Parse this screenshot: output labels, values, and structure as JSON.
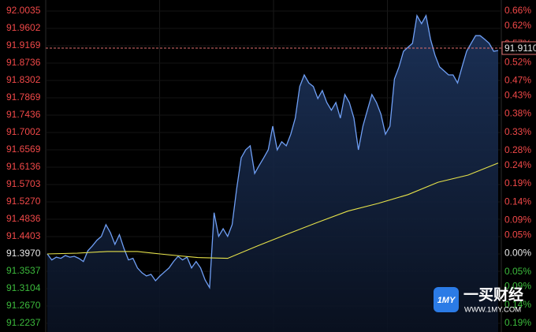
{
  "chart_data": {
    "type": "line",
    "series": [
      {
        "name": "price",
        "color": "#6f9ff5",
        "values": [
          91.397,
          91.382,
          91.389,
          91.386,
          91.393,
          91.389,
          91.391,
          91.386,
          91.378,
          91.405,
          91.417,
          91.431,
          91.441,
          91.47,
          91.45,
          91.421,
          91.445,
          91.411,
          91.382,
          91.386,
          91.362,
          91.35,
          91.342,
          91.346,
          91.33,
          91.342,
          91.352,
          91.362,
          91.378,
          91.391,
          91.382,
          91.389,
          91.362,
          91.378,
          91.362,
          91.332,
          91.313,
          91.5,
          91.441,
          91.46,
          91.441,
          91.47,
          91.559,
          91.637,
          91.657,
          91.667,
          91.598,
          91.618,
          91.637,
          91.657,
          91.716,
          91.657,
          91.677,
          91.667,
          91.696,
          91.736,
          91.815,
          91.844,
          91.824,
          91.815,
          91.785,
          91.805,
          91.775,
          91.756,
          91.775,
          91.736,
          91.795,
          91.775,
          91.736,
          91.657,
          91.716,
          91.756,
          91.795,
          91.775,
          91.746,
          91.696,
          91.716,
          91.834,
          91.864,
          91.903,
          91.913,
          91.923,
          91.992,
          91.972,
          91.992,
          91.933,
          91.893,
          91.864,
          91.854,
          91.844,
          91.844,
          91.824,
          91.864,
          91.903,
          91.923,
          91.942,
          91.942,
          91.933,
          91.923,
          91.903,
          91.905
        ]
      },
      {
        "name": "average",
        "color": "#e6e24a",
        "values": [
          91.397,
          91.399,
          91.403,
          91.403,
          91.395,
          91.388,
          91.386,
          91.417,
          91.447,
          91.476,
          91.504,
          91.523,
          91.545,
          91.576,
          91.594,
          91.624
        ]
      }
    ],
    "ylim": [
      91.2237,
      92.0035
    ],
    "yticks": [
      {
        "value": 92.0035,
        "label": "92.0035"
      },
      91.9602,
      91.9169,
      91.8736,
      91.8302,
      91.7869,
      91.7436,
      91.7002,
      91.6569,
      91.6136,
      91.5703,
      {
        "value": 91.527,
        "label": "91.5270"
      },
      91.4836,
      91.4403,
      {
        "value": 91.397,
        "label": "91.3970"
      },
      91.3537,
      91.3104,
      {
        "value": 91.267,
        "label": "91.2670"
      },
      91.2237
    ],
    "y2lim": [
      -0.19,
      0.66
    ],
    "y2ticks": [
      {
        "value": 0.66,
        "label": "0.66%"
      },
      {
        "value": 0.62,
        "label": "0.62%"
      },
      {
        "value": 0.57,
        "label": "0.57%"
      },
      {
        "value": 0.52,
        "label": "0.52%"
      },
      {
        "value": 0.47,
        "label": "0.47%"
      },
      {
        "value": 0.43,
        "label": "0.43%"
      },
      {
        "value": 0.38,
        "label": "0.38%"
      },
      {
        "value": 0.33,
        "label": "0.33%"
      },
      {
        "value": 0.28,
        "label": "0.28%"
      },
      {
        "value": 0.24,
        "label": "0.24%"
      },
      {
        "value": 0.19,
        "label": "0.19%"
      },
      {
        "value": 0.14,
        "label": "0.14%"
      },
      {
        "value": 0.09,
        "label": "0.09%"
      },
      {
        "value": 0.05,
        "label": "0.05%"
      },
      {
        "value": 0,
        "label": "0.00%"
      },
      {
        "value": -0.05,
        "label": "0.05%"
      },
      {
        "value": -0.09,
        "label": "0.09%"
      },
      {
        "value": -0.14,
        "label": "0.14%"
      },
      {
        "value": -0.19,
        "label": "0.19%"
      }
    ],
    "reference": {
      "value": 91.911,
      "label": "91.9110",
      "color": "#e07070"
    },
    "up_color": "#f04848",
    "down_color": "#3cba3c",
    "flat_color": "#e8e8e8",
    "grid": true,
    "watermark": {
      "logo": "1MY",
      "name": "一买财经",
      "site": "WWW.1MY.COM"
    }
  }
}
